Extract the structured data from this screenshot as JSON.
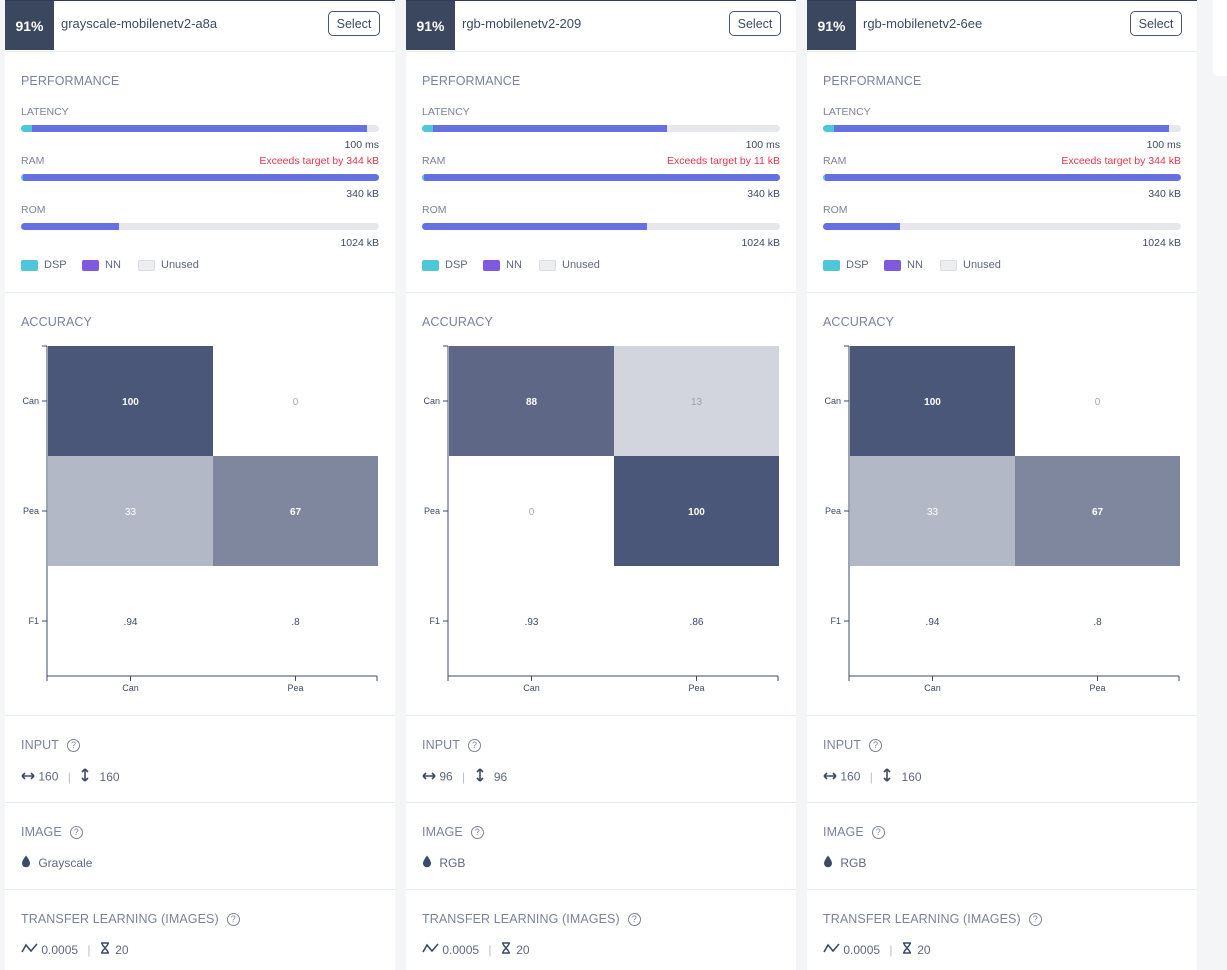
{
  "colors": {
    "dsp": "#4ec7d8",
    "nn": "#6571e0",
    "unused": "#e6e8ec",
    "warning": "#e8354d",
    "badge_bg": "#3b465f"
  },
  "labels": {
    "select": "Select",
    "performance": "PERFORMANCE",
    "latency": "LATENCY",
    "ram": "RAM",
    "rom": "ROM",
    "legend_dsp": "DSP",
    "legend_nn": "NN",
    "legend_unused": "Unused",
    "accuracy": "ACCURACY",
    "input": "INPUT",
    "image": "IMAGE",
    "transfer": "TRANSFER LEARNING (IMAGES)",
    "help_icon_text": "?"
  },
  "cards": [
    {
      "accuracy_badge": "91%",
      "name": "grayscale-mobilenetv2-a8a",
      "latency": {
        "value": "100 ms",
        "dsp_fraction": 0.03,
        "nn_fraction": 0.935
      },
      "ram": {
        "value": "340 kB",
        "warning": "Exceeds target by 344 kB",
        "dsp_fraction": 0.005,
        "nn_fraction": 0.995
      },
      "rom": {
        "value": "1024 kB",
        "dsp_fraction": 0.0,
        "nn_fraction": 0.275
      },
      "confusion": {
        "rows": [
          "Can",
          "Pea",
          "F1"
        ],
        "cols": [
          "Can",
          "Pea"
        ],
        "cells": [
          [
            "100",
            "0"
          ],
          [
            "33",
            "67"
          ]
        ],
        "values": [
          [
            100,
            0
          ],
          [
            33,
            67
          ]
        ],
        "f1": [
          ".94",
          ".8"
        ]
      },
      "input": {
        "width": "160",
        "height": "160"
      },
      "image": "Grayscale",
      "transfer": {
        "learning_rate": "0.0005",
        "epochs": "20"
      }
    },
    {
      "accuracy_badge": "91%",
      "name": "rgb-mobilenetv2-209",
      "latency": {
        "value": "100 ms",
        "dsp_fraction": 0.03,
        "nn_fraction": 0.655
      },
      "ram": {
        "value": "340 kB",
        "warning": "Exceeds target by 11 kB",
        "dsp_fraction": 0.005,
        "nn_fraction": 0.995
      },
      "rom": {
        "value": "1024 kB",
        "dsp_fraction": 0.0,
        "nn_fraction": 0.628
      },
      "confusion": {
        "rows": [
          "Can",
          "Pea",
          "F1"
        ],
        "cols": [
          "Can",
          "Pea"
        ],
        "cells": [
          [
            "88",
            "13"
          ],
          [
            "0",
            "100"
          ]
        ],
        "values": [
          [
            88,
            13
          ],
          [
            0,
            100
          ]
        ],
        "f1": [
          ".93",
          ".86"
        ]
      },
      "input": {
        "width": "96",
        "height": "96"
      },
      "image": "RGB",
      "transfer": {
        "learning_rate": "0.0005",
        "epochs": "20"
      }
    },
    {
      "accuracy_badge": "91%",
      "name": "rgb-mobilenetv2-6ee",
      "latency": {
        "value": "100 ms",
        "dsp_fraction": 0.03,
        "nn_fraction": 0.935
      },
      "ram": {
        "value": "340 kB",
        "warning": "Exceeds target by 344 kB",
        "dsp_fraction": 0.005,
        "nn_fraction": 0.995
      },
      "rom": {
        "value": "1024 kB",
        "dsp_fraction": 0.0,
        "nn_fraction": 0.215
      },
      "confusion": {
        "rows": [
          "Can",
          "Pea",
          "F1"
        ],
        "cols": [
          "Can",
          "Pea"
        ],
        "cells": [
          [
            "100",
            "0"
          ],
          [
            "33",
            "67"
          ]
        ],
        "values": [
          [
            100,
            0
          ],
          [
            33,
            67
          ]
        ],
        "f1": [
          ".94",
          ".8"
        ]
      },
      "input": {
        "width": "160",
        "height": "160"
      },
      "image": "RGB",
      "transfer": {
        "learning_rate": "0.0005",
        "epochs": "20"
      }
    }
  ]
}
